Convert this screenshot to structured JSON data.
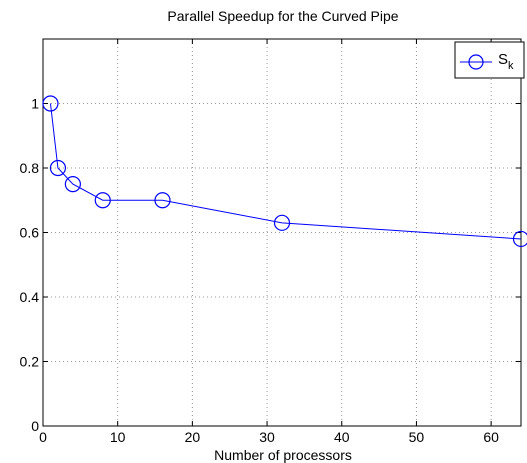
{
  "chart_data": {
    "type": "line",
    "title": "Parallel Speedup for the Curved Pipe",
    "xlabel": "Number of processors",
    "ylabel": "",
    "xlim": [
      0,
      64
    ],
    "ylim": [
      0,
      1.2
    ],
    "xticks": [
      0,
      10,
      20,
      30,
      40,
      50,
      60
    ],
    "yticks": [
      0,
      0.2,
      0.4,
      0.6,
      0.8,
      1
    ],
    "xtick_labels": [
      "0",
      "10",
      "20",
      "30",
      "40",
      "50",
      "60"
    ],
    "ytick_labels": [
      "0",
      "0.2",
      "0.4",
      "0.6",
      "0.8",
      "1"
    ],
    "grid": true,
    "legend_position": "top-right",
    "series": [
      {
        "name": "S",
        "name_subscript": "k",
        "color": "#0000ff",
        "marker": "circle",
        "x": [
          1,
          2,
          4,
          8,
          16,
          32,
          64
        ],
        "values": [
          1.0,
          0.8,
          0.75,
          0.7,
          0.7,
          0.63,
          0.58
        ]
      }
    ]
  }
}
